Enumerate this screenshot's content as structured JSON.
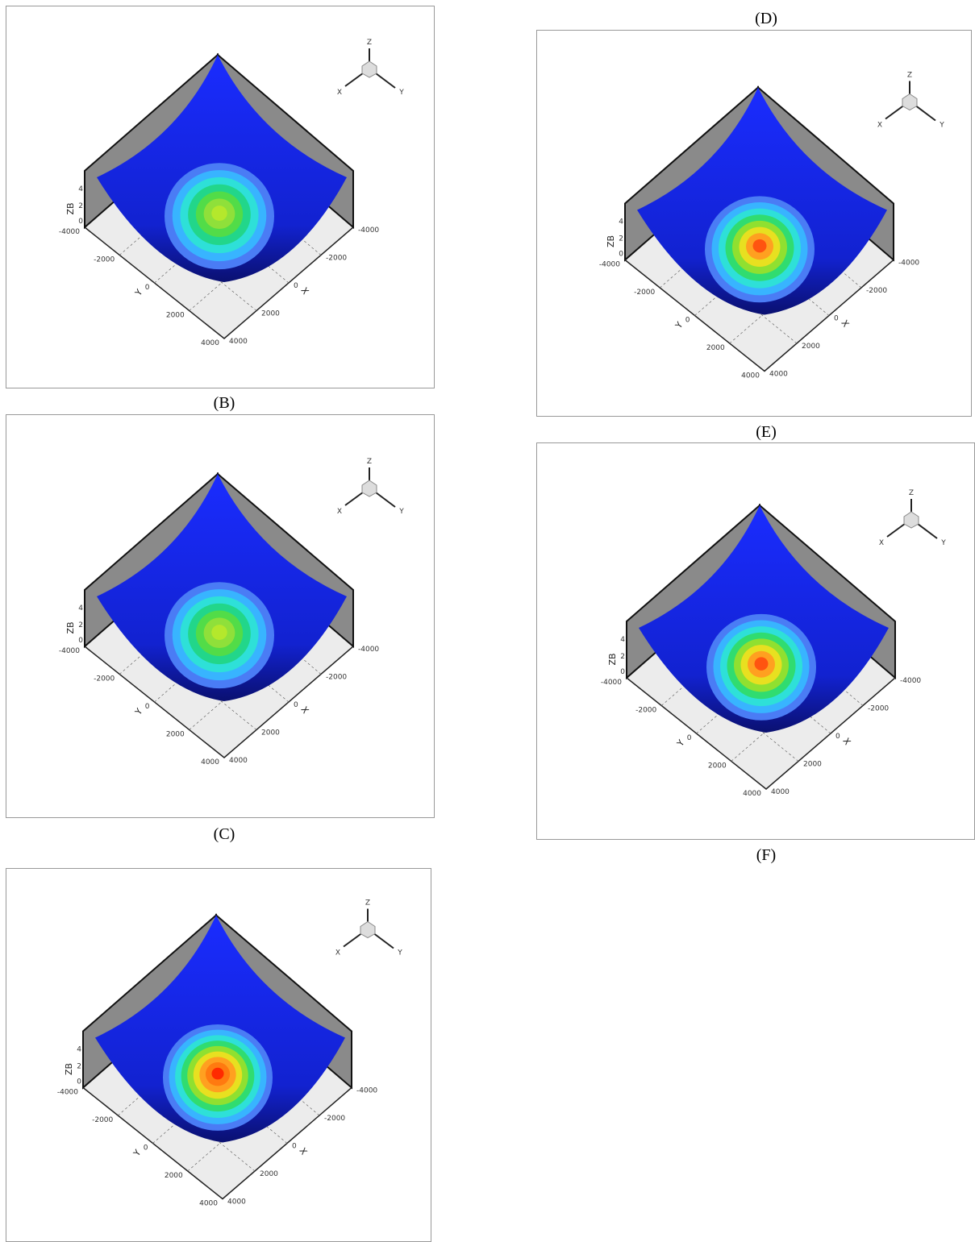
{
  "captions": [
    "(D)",
    "(B)",
    "(E)",
    "(C)",
    "(F)"
  ],
  "axes": {
    "z_label": "ZB",
    "x_label": "X",
    "y_label": "Y",
    "z_ticks": [
      "0",
      "2",
      "4"
    ],
    "xy_ticks": [
      "-4000",
      "-2000",
      "0",
      "2000",
      "4000"
    ],
    "triad": [
      "Z",
      "X",
      "Y"
    ]
  },
  "panels": [
    {
      "contour_colors": [
        "#4a7cf5",
        "#38b4ff",
        "#2ee0d8",
        "#22d68a",
        "#52dc48",
        "#8fe03a",
        "#b4e82c"
      ]
    },
    {
      "contour_colors": [
        "#4a7cf5",
        "#38b4ff",
        "#2ee0d8",
        "#30dc70",
        "#90e030",
        "#e8e020",
        "#ffa020",
        "#ff5410"
      ]
    },
    {
      "contour_colors": [
        "#4a7cf5",
        "#38b4ff",
        "#2ee0d8",
        "#22d68a",
        "#52dc48",
        "#8fe03a",
        "#b4e82c"
      ]
    },
    {
      "contour_colors": [
        "#4a7cf5",
        "#38b4ff",
        "#2ee0d8",
        "#30dc70",
        "#90e030",
        "#e8e020",
        "#ffa020",
        "#ff5410"
      ]
    },
    {
      "contour_colors": [
        "#4a7cf5",
        "#38b4ff",
        "#2ee0d8",
        "#30dc70",
        "#90e030",
        "#e8e020",
        "#ffa020",
        "#ff7a10",
        "#ff2a00"
      ]
    }
  ]
}
